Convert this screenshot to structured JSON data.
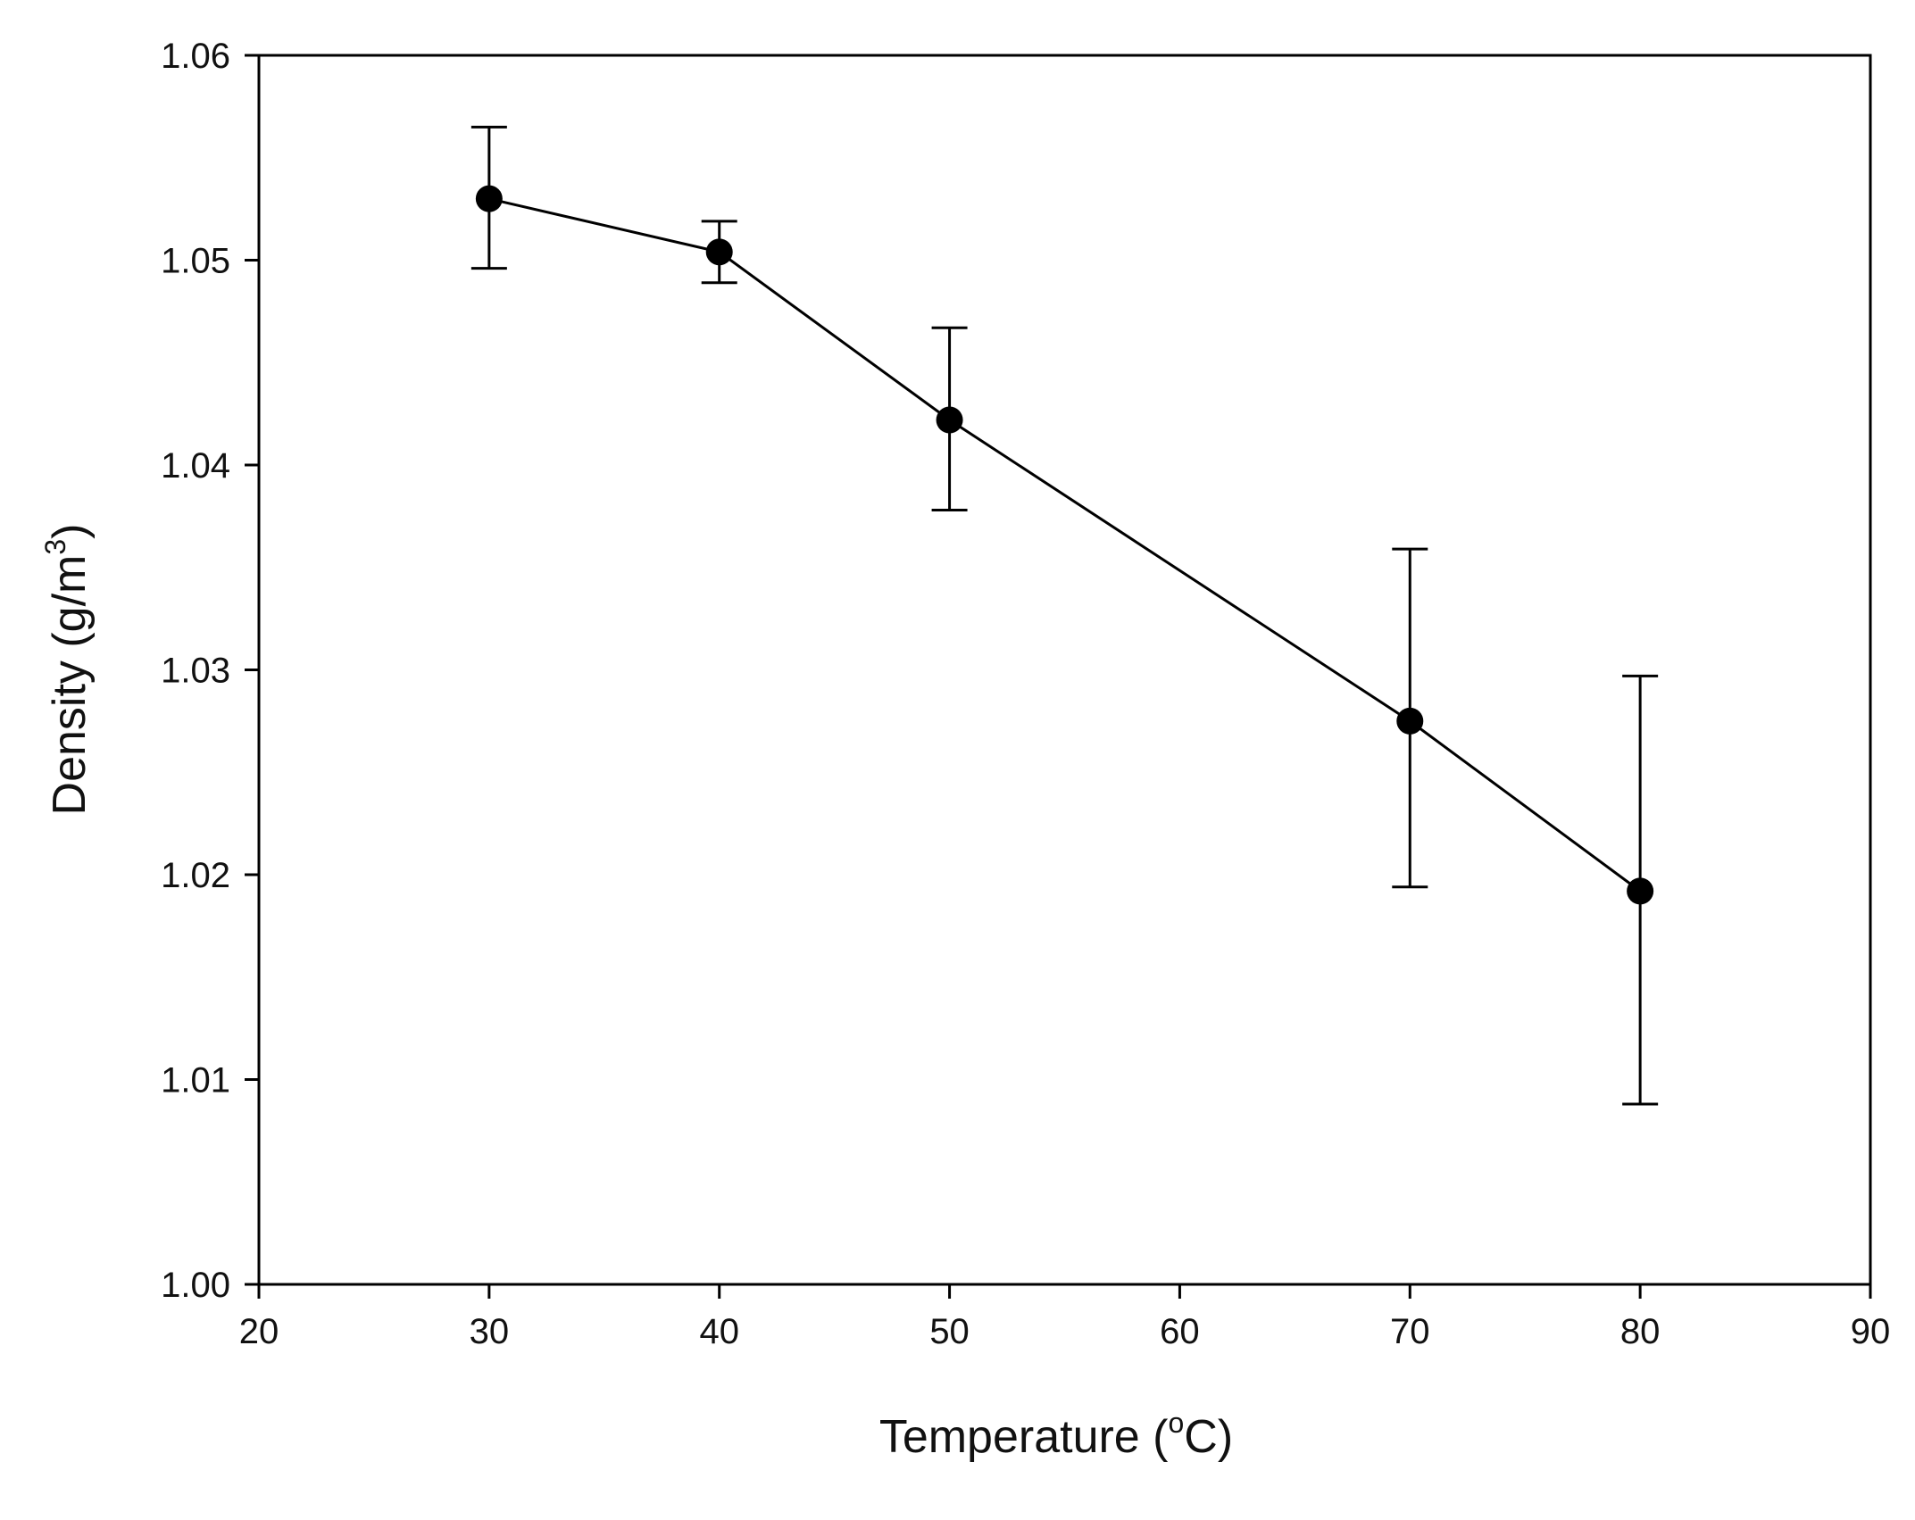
{
  "chart_data": {
    "type": "line",
    "title": "",
    "xlabel": {
      "before": "Temperature (",
      "sup": "o",
      "after": "C)"
    },
    "ylabel": {
      "before": "Density (g/m",
      "sup": "3",
      "after": ")"
    },
    "xlim": [
      20,
      90
    ],
    "ylim": [
      1.0,
      1.06
    ],
    "x_ticks": [
      20,
      30,
      40,
      50,
      60,
      70,
      80,
      90
    ],
    "x_tick_labels": [
      "20",
      "30",
      "40",
      "50",
      "60",
      "70",
      "80",
      "90"
    ],
    "y_ticks": [
      1.0,
      1.01,
      1.02,
      1.03,
      1.04,
      1.05,
      1.06
    ],
    "y_tick_labels": [
      "1.00",
      "1.01",
      "1.02",
      "1.03",
      "1.04",
      "1.05",
      "1.06"
    ],
    "grid": false,
    "series": [
      {
        "name": "Density",
        "color": "#000000",
        "marker": "circle",
        "points": [
          {
            "x": 30,
            "y": 1.053,
            "err_low": 1.0496,
            "err_high": 1.0565
          },
          {
            "x": 40,
            "y": 1.0504,
            "err_low": 1.0489,
            "err_high": 1.0519
          },
          {
            "x": 50,
            "y": 1.0422,
            "err_low": 1.0378,
            "err_high": 1.0467
          },
          {
            "x": 70,
            "y": 1.0275,
            "err_low": 1.0194,
            "err_high": 1.0359
          },
          {
            "x": 80,
            "y": 1.0192,
            "err_low": 1.0088,
            "err_high": 1.0297
          }
        ]
      }
    ]
  }
}
